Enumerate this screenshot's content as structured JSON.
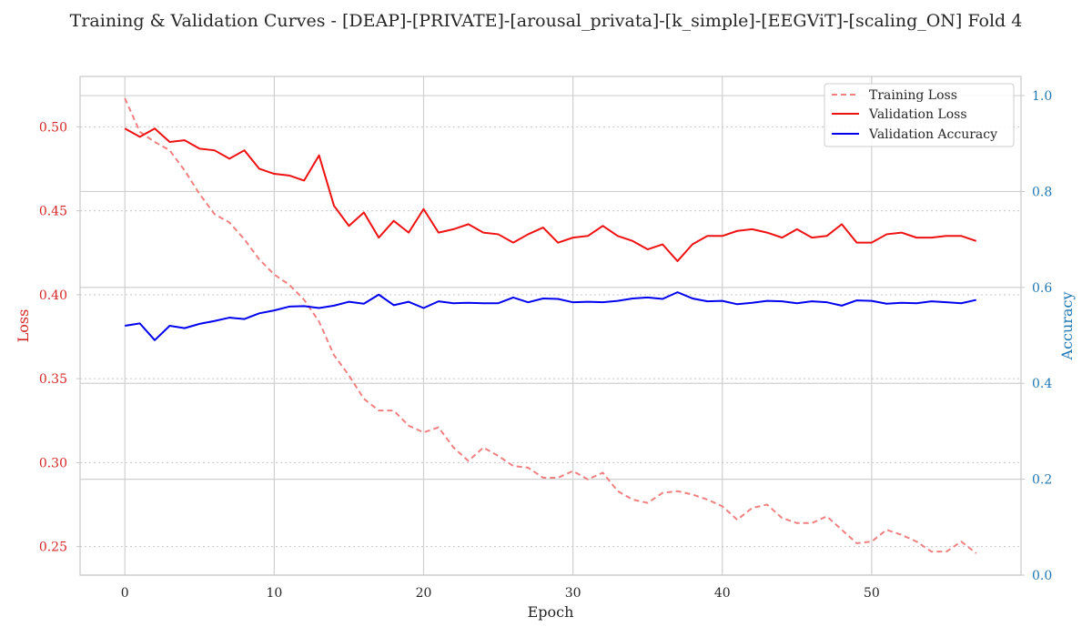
{
  "chart_data": {
    "type": "line",
    "title": "Training & Validation Curves - [DEAP]-[PRIVATE]-[arousal_privata]-[k_simple]-[EEGViT]-[scaling_ON] Fold 4",
    "xlabel": "Epoch",
    "ylabel_left": "Loss",
    "ylabel_right": "Accuracy",
    "xlim": [
      -3,
      60
    ],
    "ylim_left": [
      0.233,
      0.53
    ],
    "ylim_right": [
      0.0,
      1.04
    ],
    "x_ticks": [
      0,
      10,
      20,
      30,
      40,
      50
    ],
    "y_ticks_left": [
      0.25,
      0.3,
      0.35,
      0.4,
      0.45,
      0.5
    ],
    "y_ticks_right": [
      0.0,
      0.2,
      0.4,
      0.6,
      0.8,
      1.0
    ],
    "y_tick_labels_left": [
      "0.25",
      "0.30",
      "0.35",
      "0.40",
      "0.45",
      "0.50"
    ],
    "y_tick_labels_right": [
      "0.0",
      "0.2",
      "0.4",
      "0.6",
      "0.8",
      "1.0"
    ],
    "grid": true,
    "legend_position": "top-right",
    "series": [
      {
        "name": "Training Loss",
        "axis": "left",
        "color": "#f08080",
        "style": "dashed",
        "values": [
          0.517,
          0.497,
          0.491,
          0.486,
          0.474,
          0.46,
          0.448,
          0.443,
          0.433,
          0.421,
          0.412,
          0.406,
          0.397,
          0.384,
          0.364,
          0.352,
          0.338,
          0.331,
          0.331,
          0.322,
          0.318,
          0.321,
          0.309,
          0.301,
          0.309,
          0.304,
          0.298,
          0.297,
          0.291,
          0.291,
          0.295,
          0.29,
          0.294,
          0.283,
          0.278,
          0.276,
          0.282,
          0.283,
          0.281,
          0.278,
          0.274,
          0.266,
          0.273,
          0.275,
          0.267,
          0.264,
          0.264,
          0.268,
          0.26,
          0.252,
          0.253,
          0.26,
          0.257,
          0.253,
          0.247,
          0.247,
          0.253,
          0.246
        ]
      },
      {
        "name": "Validation Loss",
        "axis": "left",
        "color": "#ee1111",
        "style": "solid",
        "values": [
          0.499,
          0.494,
          0.499,
          0.491,
          0.492,
          0.487,
          0.486,
          0.481,
          0.486,
          0.475,
          0.472,
          0.471,
          0.468,
          0.483,
          0.453,
          0.441,
          0.449,
          0.434,
          0.444,
          0.437,
          0.451,
          0.437,
          0.439,
          0.442,
          0.437,
          0.436,
          0.431,
          0.436,
          0.44,
          0.431,
          0.434,
          0.435,
          0.441,
          0.435,
          0.432,
          0.427,
          0.43,
          0.42,
          0.43,
          0.435,
          0.435,
          0.438,
          0.439,
          0.437,
          0.434,
          0.439,
          0.434,
          0.435,
          0.442,
          0.431,
          0.431,
          0.436,
          0.437,
          0.434,
          0.434,
          0.435,
          0.435,
          0.432
        ]
      },
      {
        "name": "Validation Accuracy",
        "axis": "right",
        "color": "#0000ee",
        "style": "solid",
        "values": [
          0.52,
          0.525,
          0.49,
          0.52,
          0.515,
          0.524,
          0.53,
          0.537,
          0.534,
          0.546,
          0.552,
          0.56,
          0.561,
          0.557,
          0.562,
          0.57,
          0.566,
          0.585,
          0.563,
          0.57,
          0.557,
          0.571,
          0.567,
          0.568,
          0.567,
          0.567,
          0.579,
          0.569,
          0.577,
          0.576,
          0.569,
          0.57,
          0.569,
          0.572,
          0.577,
          0.579,
          0.576,
          0.59,
          0.577,
          0.571,
          0.572,
          0.565,
          0.568,
          0.572,
          0.571,
          0.567,
          0.571,
          0.569,
          0.562,
          0.573,
          0.572,
          0.566,
          0.568,
          0.567,
          0.571,
          0.569,
          0.567,
          0.574
        ]
      }
    ]
  }
}
